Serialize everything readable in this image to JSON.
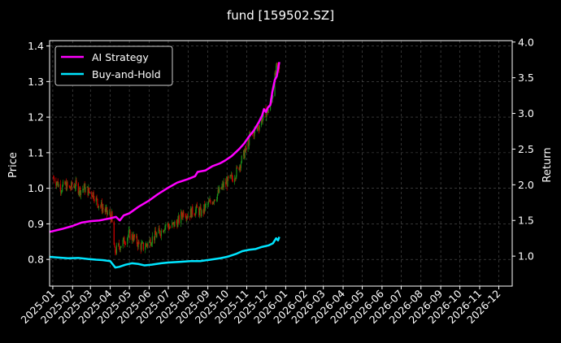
{
  "colors": {
    "background": "#000000",
    "foreground": "#ffffff",
    "grid": "#555555",
    "ai_strategy": "#ff00ff",
    "buy_and_hold": "#00e5ff",
    "candle_up": "#1a8f1a",
    "candle_down": "#d40000"
  },
  "chart_data": {
    "type": "line",
    "title": "fund [159502.SZ]",
    "xlabel": "",
    "ylabel": "Price",
    "ylabel_right": "Return",
    "grid": true,
    "legend_position": "top-left",
    "x_range": [
      "2024-12-27",
      "2026-12-22"
    ],
    "ylim": [
      0.725,
      1.415
    ],
    "ylim_right": [
      0.58,
      4.02
    ],
    "x_tick_labels": [
      "2025-01",
      "2025-02",
      "2025-03",
      "2025-04",
      "2025-05",
      "2025-06",
      "2025-07",
      "2025-08",
      "2025-09",
      "2025-10",
      "2025-11",
      "2025-12",
      "2026-01",
      "2026-02",
      "2026-03",
      "2026-04",
      "2026-05",
      "2026-06",
      "2026-07",
      "2026-08",
      "2026-09",
      "2026-10",
      "2026-11",
      "2026-12"
    ],
    "y_ticks": [
      0.8,
      0.9,
      1.0,
      1.1,
      1.2,
      1.3,
      1.4
    ],
    "y_tick_labels": [
      "0.8",
      "0.9",
      "1.0",
      "1.1",
      "1.2",
      "1.3",
      "1.4"
    ],
    "y_ticks_right": [
      1.0,
      1.5,
      2.0,
      2.5,
      3.0,
      3.5,
      4.0
    ],
    "y_tick_labels_right": [
      "1.0",
      "1.5",
      "2.0",
      "2.5",
      "3.0",
      "3.5",
      "4.0"
    ],
    "price_path": [
      [
        "2025-01-02",
        1.03
      ],
      [
        "2025-01-06",
        1.02
      ],
      [
        "2025-01-10",
        1.01
      ],
      [
        "2025-01-15",
        1.0
      ],
      [
        "2025-01-20",
        1.01
      ],
      [
        "2025-01-27",
        1.0
      ],
      [
        "2025-02-05",
        1.01
      ],
      [
        "2025-02-12",
        0.995
      ],
      [
        "2025-02-20",
        1.0
      ],
      [
        "2025-02-27",
        0.99
      ],
      [
        "2025-03-05",
        0.985
      ],
      [
        "2025-03-12",
        0.96
      ],
      [
        "2025-03-20",
        0.945
      ],
      [
        "2025-03-27",
        0.93
      ],
      [
        "2025-04-03",
        0.92
      ],
      [
        "2025-04-08",
        0.82
      ],
      [
        "2025-04-14",
        0.835
      ],
      [
        "2025-04-22",
        0.85
      ],
      [
        "2025-04-30",
        0.87
      ],
      [
        "2025-05-09",
        0.86
      ],
      [
        "2025-05-16",
        0.84
      ],
      [
        "2025-05-23",
        0.835
      ],
      [
        "2025-05-30",
        0.845
      ],
      [
        "2025-06-06",
        0.86
      ],
      [
        "2025-06-13",
        0.87
      ],
      [
        "2025-06-20",
        0.88
      ],
      [
        "2025-06-27",
        0.9
      ],
      [
        "2025-07-04",
        0.89
      ],
      [
        "2025-07-11",
        0.9
      ],
      [
        "2025-07-18",
        0.91
      ],
      [
        "2025-07-25",
        0.935
      ],
      [
        "2025-08-01",
        0.925
      ],
      [
        "2025-08-08",
        0.935
      ],
      [
        "2025-08-15",
        0.94
      ],
      [
        "2025-08-22",
        0.93
      ],
      [
        "2025-08-29",
        0.95
      ],
      [
        "2025-09-05",
        0.96
      ],
      [
        "2025-09-12",
        0.975
      ],
      [
        "2025-09-19",
        0.99
      ],
      [
        "2025-09-26",
        1.01
      ],
      [
        "2025-10-03",
        1.02
      ],
      [
        "2025-10-10",
        1.03
      ],
      [
        "2025-10-17",
        1.05
      ],
      [
        "2025-10-24",
        1.08
      ],
      [
        "2025-10-31",
        1.11
      ],
      [
        "2025-11-07",
        1.15
      ],
      [
        "2025-11-14",
        1.16
      ],
      [
        "2025-11-21",
        1.18
      ],
      [
        "2025-11-28",
        1.21
      ],
      [
        "2025-12-05",
        1.22
      ],
      [
        "2025-12-10",
        1.25
      ],
      [
        "2025-12-15",
        1.31
      ],
      [
        "2025-12-18",
        1.34
      ],
      [
        "2025-12-22",
        1.33
      ]
    ],
    "series": [
      {
        "name": "AI Strategy",
        "color": "#ff00ff",
        "axis": "right",
        "points": [
          [
            "2024-12-27",
            1.34
          ],
          [
            "2025-01-15",
            1.38
          ],
          [
            "2025-01-31",
            1.42
          ],
          [
            "2025-02-15",
            1.47
          ],
          [
            "2025-03-01",
            1.49
          ],
          [
            "2025-03-15",
            1.5
          ],
          [
            "2025-04-01",
            1.53
          ],
          [
            "2025-04-10",
            1.55
          ],
          [
            "2025-04-16",
            1.5
          ],
          [
            "2025-04-22",
            1.57
          ],
          [
            "2025-05-01",
            1.6
          ],
          [
            "2025-05-15",
            1.69
          ],
          [
            "2025-06-01",
            1.78
          ],
          [
            "2025-06-15",
            1.87
          ],
          [
            "2025-07-01",
            1.96
          ],
          [
            "2025-07-15",
            2.03
          ],
          [
            "2025-08-01",
            2.08
          ],
          [
            "2025-08-12",
            2.12
          ],
          [
            "2025-08-16",
            2.18
          ],
          [
            "2025-08-28",
            2.2
          ],
          [
            "2025-09-08",
            2.26
          ],
          [
            "2025-09-20",
            2.3
          ],
          [
            "2025-09-28",
            2.34
          ],
          [
            "2025-10-08",
            2.4
          ],
          [
            "2025-10-20",
            2.5
          ],
          [
            "2025-10-28",
            2.58
          ],
          [
            "2025-11-04",
            2.67
          ],
          [
            "2025-11-12",
            2.76
          ],
          [
            "2025-11-20",
            2.88
          ],
          [
            "2025-11-25",
            2.97
          ],
          [
            "2025-11-28",
            3.06
          ],
          [
            "2025-12-01",
            3.02
          ],
          [
            "2025-12-04",
            3.08
          ],
          [
            "2025-12-08",
            3.12
          ],
          [
            "2025-12-11",
            3.3
          ],
          [
            "2025-12-15",
            3.47
          ],
          [
            "2025-12-18",
            3.52
          ],
          [
            "2025-12-20",
            3.62
          ],
          [
            "2025-12-22",
            3.72
          ]
        ]
      },
      {
        "name": "Buy-and-Hold",
        "color": "#00e5ff",
        "axis": "right",
        "points": [
          [
            "2024-12-27",
            0.99
          ],
          [
            "2025-01-10",
            0.98
          ],
          [
            "2025-01-25",
            0.97
          ],
          [
            "2025-02-10",
            0.975
          ],
          [
            "2025-02-25",
            0.96
          ],
          [
            "2025-03-10",
            0.95
          ],
          [
            "2025-03-20",
            0.945
          ],
          [
            "2025-04-01",
            0.93
          ],
          [
            "2025-04-09",
            0.84
          ],
          [
            "2025-04-15",
            0.85
          ],
          [
            "2025-04-25",
            0.88
          ],
          [
            "2025-05-05",
            0.9
          ],
          [
            "2025-05-15",
            0.89
          ],
          [
            "2025-05-25",
            0.87
          ],
          [
            "2025-06-05",
            0.88
          ],
          [
            "2025-06-20",
            0.9
          ],
          [
            "2025-07-01",
            0.91
          ],
          [
            "2025-07-20",
            0.92
          ],
          [
            "2025-08-05",
            0.93
          ],
          [
            "2025-08-20",
            0.93
          ],
          [
            "2025-09-05",
            0.95
          ],
          [
            "2025-09-20",
            0.97
          ],
          [
            "2025-10-01",
            0.99
          ],
          [
            "2025-10-15",
            1.03
          ],
          [
            "2025-10-25",
            1.07
          ],
          [
            "2025-11-05",
            1.09
          ],
          [
            "2025-11-15",
            1.1
          ],
          [
            "2025-11-25",
            1.13
          ],
          [
            "2025-12-05",
            1.15
          ],
          [
            "2025-12-12",
            1.18
          ],
          [
            "2025-12-17",
            1.25
          ],
          [
            "2025-12-20",
            1.22
          ],
          [
            "2025-12-22",
            1.27
          ]
        ]
      }
    ]
  }
}
